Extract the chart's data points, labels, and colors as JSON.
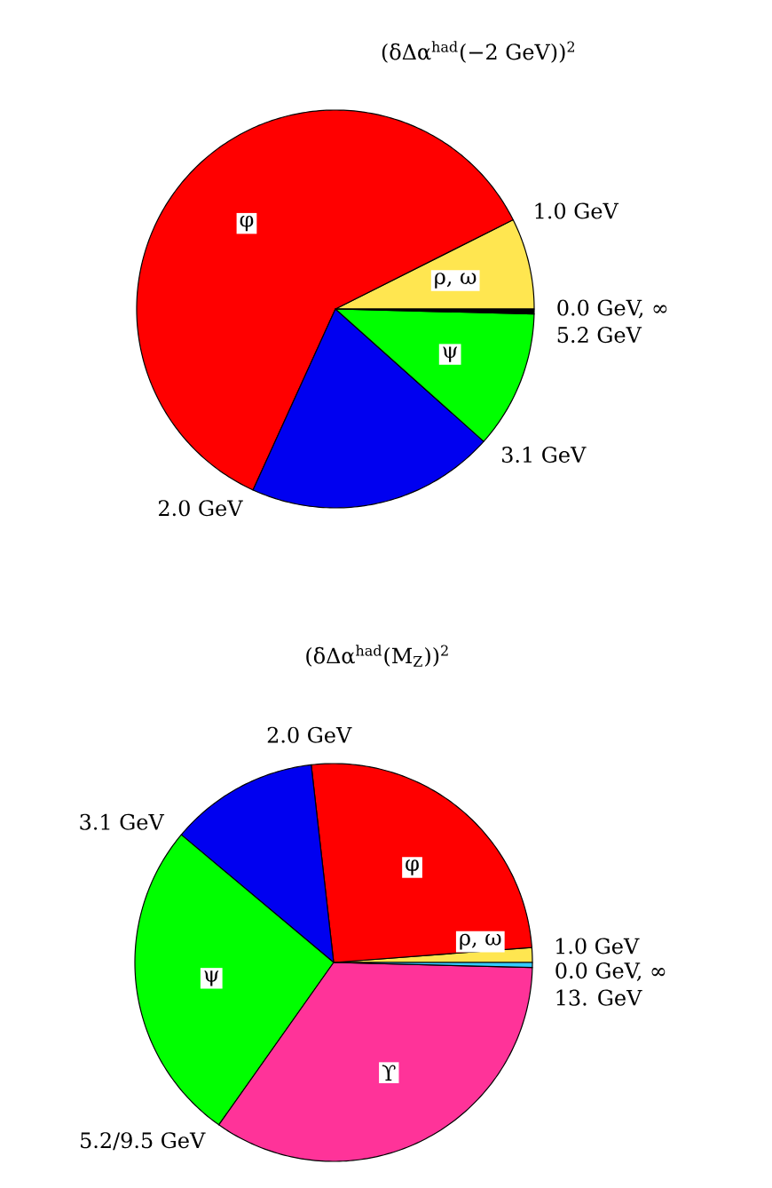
{
  "chart_data": [
    {
      "type": "pie",
      "title": "(δΔα$^{had}$(−2 GeV))$^{2}$",
      "categories": [
        "ρ, ω",
        "φ",
        null,
        "ψ",
        null
      ],
      "values": [
        7.4,
        60.8,
        20.2,
        11.2,
        0.4
      ],
      "colors": [
        "#ffe650",
        "#ff0000",
        "#0000f0",
        "#00ff00",
        "#000000"
      ],
      "annotations": [
        "0.0 GeV, ∞",
        "1.0 GeV",
        "2.0 GeV",
        "3.1 GeV",
        "5.2 GeV"
      ]
    },
    {
      "type": "pie",
      "title": "(δΔα$^{had}$(M$_{Z}$))$^{2}$",
      "categories": [
        "ρ, ω",
        "φ",
        null,
        "ψ",
        "ϒ",
        null
      ],
      "values": [
        1.2,
        25.6,
        12.1,
        26.3,
        34.4,
        0.4
      ],
      "colors": [
        "#ffe650",
        "#ff0000",
        "#0000f0",
        "#00ff00",
        "#ff3399",
        "#33ccff"
      ],
      "annotations": [
        "0.0 GeV, ∞",
        "1.0 GeV",
        "2.0 GeV",
        "3.1 GeV",
        "5.2/9.5 GeV",
        "13. GeV"
      ]
    }
  ]
}
